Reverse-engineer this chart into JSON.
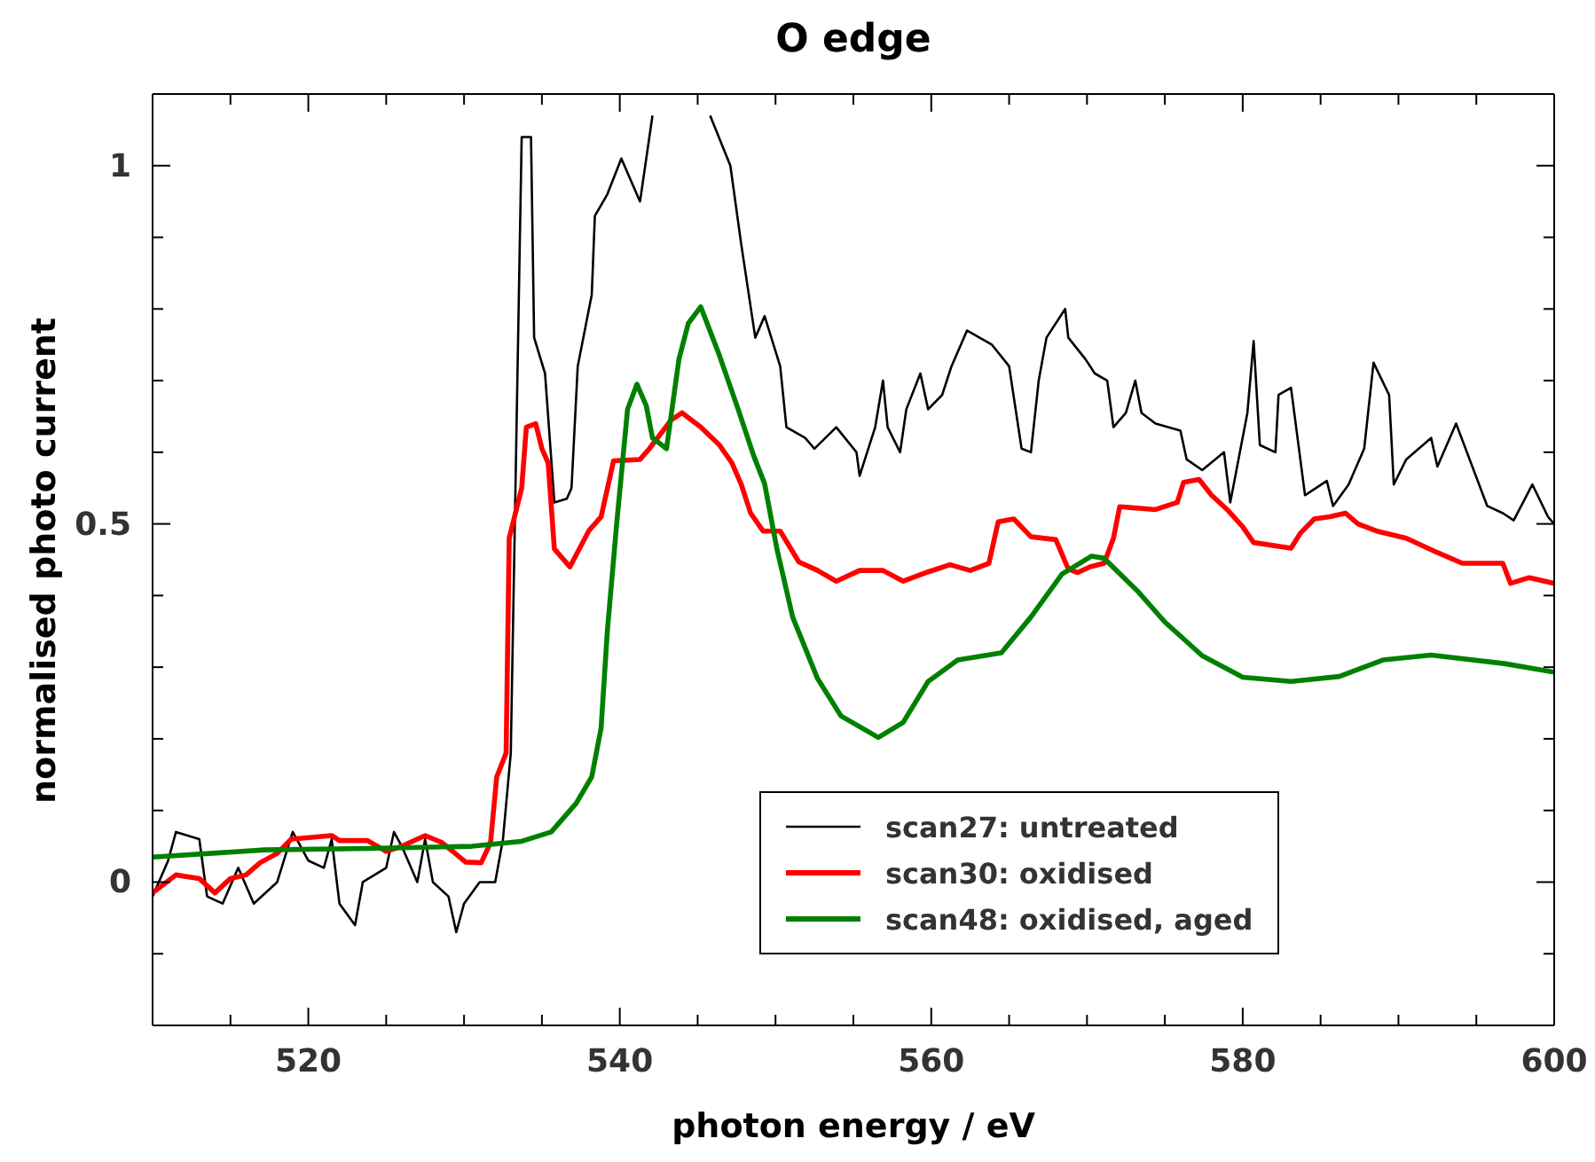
{
  "chart_data": {
    "type": "line",
    "title": "O edge",
    "xlabel": "photon energy / eV",
    "ylabel": "normalised photo current",
    "xlim": [
      510,
      600
    ],
    "ylim": [
      -0.2,
      1.1
    ],
    "xticks": [
      {
        "value": 510,
        "label": null
      },
      {
        "value": 515,
        "label": null
      },
      520,
      {
        "value": 525,
        "label": null
      },
      {
        "value": 530,
        "label": null
      },
      {
        "value": 535,
        "label": null
      },
      540,
      {
        "value": 545,
        "label": null
      },
      {
        "value": 550,
        "label": null
      },
      {
        "value": 555,
        "label": null
      },
      560,
      {
        "value": 565,
        "label": null
      },
      {
        "value": 570,
        "label": null
      },
      {
        "value": 575,
        "label": null
      },
      580,
      {
        "value": 585,
        "label": null
      },
      {
        "value": 590,
        "label": null
      },
      {
        "value": 595,
        "label": null
      },
      600
    ],
    "yticks": [
      {
        "value": -0.1,
        "label": null
      },
      0,
      {
        "value": 0.1,
        "label": null
      },
      {
        "value": 0.2,
        "label": null
      },
      {
        "value": 0.3,
        "label": null
      },
      {
        "value": 0.4,
        "label": null
      },
      0.5,
      {
        "value": 0.6,
        "label": null
      },
      {
        "value": 0.7,
        "label": null
      },
      {
        "value": 0.8,
        "label": null
      },
      {
        "value": 0.9,
        "label": null
      },
      1
    ],
    "legend": "bottom right",
    "marker": "none",
    "line_style": "solid",
    "series": [
      {
        "name": "scan27: untreated",
        "color": "#000000",
        "x": [
          510,
          511,
          511.5,
          513,
          513.5,
          514.5,
          515.5,
          516.5,
          518,
          519,
          520,
          521,
          521.5,
          522,
          523,
          523.5,
          525,
          525.5,
          526,
          527,
          527.5,
          528,
          529,
          529.5,
          530,
          531,
          532,
          532.5,
          533,
          533.7,
          534.3,
          534.5,
          535.2,
          535.8,
          536.6,
          536.9,
          537.3,
          538.2,
          538.4,
          539.2,
          540.1,
          541.3,
          542.1,
          543,
          544.8,
          545.8,
          547.1,
          547.8,
          548.7,
          549.3,
          550.3,
          550.7,
          551.9,
          552.5,
          553.9,
          555.2,
          555.4,
          556.4,
          556.9,
          557.2,
          558,
          558.4,
          559.3,
          559.8,
          560.7,
          561.3,
          562.3,
          563.9,
          565,
          565.8,
          566.4,
          566.9,
          567.4,
          568.6,
          568.8,
          569.9,
          570.5,
          571.3,
          571.7,
          572.5,
          573.1,
          573.5,
          574.4,
          576,
          576.4,
          577.4,
          578.8,
          579.2,
          580.3,
          580.7,
          581.1,
          582.1,
          582.3,
          583.1,
          584,
          585.4,
          585.8,
          586.8,
          587.8,
          588.4,
          589.4,
          589.7,
          590.5,
          592.1,
          592.5,
          593.7,
          595.7,
          596.7,
          597.4,
          598.6,
          599.6,
          600
        ],
        "values": [
          -0.02,
          0.03,
          0.07,
          0.06,
          -0.02,
          -0.03,
          0.02,
          -0.03,
          0,
          0.07,
          0.03,
          0.02,
          0.06,
          -0.03,
          -0.06,
          0,
          0.02,
          0.07,
          0.05,
          0,
          0.06,
          0,
          -0.02,
          -0.07,
          -0.03,
          0,
          0,
          0.06,
          0.18,
          1.04,
          1.04,
          0.76,
          0.71,
          0.53,
          0.535,
          0.55,
          0.72,
          0.82,
          0.93,
          0.96,
          1.01,
          0.95,
          1.07,
          null,
          null,
          1.07,
          1,
          0.89,
          0.76,
          0.79,
          0.72,
          0.635,
          0.62,
          0.605,
          0.635,
          0.6,
          0.567,
          0.635,
          0.7,
          0.635,
          0.6,
          0.66,
          0.71,
          0.66,
          0.68,
          0.72,
          0.77,
          0.75,
          0.72,
          0.605,
          0.6,
          0.7,
          0.76,
          0.8,
          0.76,
          0.73,
          0.71,
          0.7,
          0.635,
          0.655,
          0.7,
          0.655,
          0.64,
          0.63,
          0.59,
          0.575,
          0.6,
          0.53,
          0.655,
          0.755,
          0.61,
          0.6,
          0.68,
          0.69,
          0.54,
          0.56,
          0.525,
          0.555,
          0.605,
          0.725,
          0.68,
          0.555,
          0.59,
          0.62,
          0.58,
          0.64,
          0.525,
          0.515,
          0.505,
          0.555,
          0.51,
          0.5
        ]
      },
      {
        "name": "scan30: oxidised",
        "color": "#ff0000",
        "x": [
          510,
          511.5,
          513,
          514,
          515,
          516,
          516.9,
          518,
          518.9,
          521.5,
          522,
          523.8,
          525,
          526,
          527.5,
          528.6,
          530.1,
          531.1,
          531.7,
          532.1,
          532.7,
          532.9,
          533.7,
          534,
          534.6,
          535,
          535.4,
          535.8,
          536.8,
          538,
          538.8,
          539.6,
          541.3,
          541.9,
          543.3,
          544,
          545.2,
          546.4,
          547.2,
          547.8,
          548.4,
          549.2,
          550.3,
          551.5,
          552.7,
          553.9,
          555.4,
          556.9,
          558.2,
          559.8,
          561.2,
          562.5,
          563.7,
          564.3,
          565.3,
          566.4,
          568,
          568.8,
          569.4,
          570.2,
          571.1,
          571.7,
          572.1,
          574.4,
          575.8,
          576.2,
          577.2,
          578,
          579,
          580,
          580.7,
          583.1,
          583.7,
          584.6,
          585.6,
          586.6,
          587.4,
          588.6,
          590.5,
          592.5,
          594.1,
          596.7,
          597.2,
          598.4,
          600
        ],
        "values": [
          -0.015,
          0.01,
          0.005,
          -0.015,
          0.005,
          0.01,
          0.027,
          0.04,
          0.06,
          0.065,
          0.058,
          0.058,
          0.043,
          0.05,
          0.065,
          0.055,
          0.028,
          0.027,
          0.055,
          0.147,
          0.18,
          0.48,
          0.55,
          0.635,
          0.64,
          0.605,
          0.585,
          0.465,
          0.44,
          0.49,
          0.51,
          0.588,
          0.59,
          0.605,
          0.645,
          0.655,
          0.635,
          0.61,
          0.585,
          0.555,
          0.515,
          0.49,
          0.49,
          0.447,
          0.435,
          0.42,
          0.435,
          0.435,
          0.42,
          0.433,
          0.443,
          0.435,
          0.445,
          0.503,
          0.507,
          0.482,
          0.478,
          0.437,
          0.432,
          0.44,
          0.445,
          0.48,
          0.524,
          0.52,
          0.53,
          0.558,
          0.562,
          0.54,
          0.52,
          0.496,
          0.474,
          0.466,
          0.487,
          0.507,
          0.51,
          0.515,
          0.5,
          0.49,
          0.48,
          0.46,
          0.445,
          0.445,
          0.417,
          0.425,
          0.417
        ]
      },
      {
        "name": "scan48: oxidised, aged",
        "color": "#008000",
        "x": [
          510,
          517.2,
          524,
          530.5,
          533.7,
          535.6,
          537.2,
          538.2,
          538.8,
          539.2,
          539.8,
          540.5,
          541.1,
          541.7,
          542.1,
          543,
          543.8,
          544.4,
          545.2,
          546.4,
          547.6,
          548.6,
          549.3,
          550.1,
          551.1,
          552.7,
          554.2,
          556.6,
          558.2,
          559.8,
          561.7,
          564.5,
          566.4,
          568.4,
          570.3,
          571.1,
          573.3,
          575,
          577.4,
          580,
          583.1,
          586.2,
          589,
          592.1,
          596.8,
          600
        ],
        "values": [
          0.035,
          0.045,
          0.047,
          0.05,
          0.057,
          0.07,
          0.11,
          0.147,
          0.215,
          0.35,
          0.5,
          0.66,
          0.695,
          0.665,
          0.62,
          0.605,
          0.73,
          0.78,
          0.803,
          0.735,
          0.66,
          0.595,
          0.556,
          0.464,
          0.37,
          0.284,
          0.232,
          0.202,
          0.223,
          0.28,
          0.31,
          0.32,
          0.37,
          0.43,
          0.455,
          0.452,
          0.405,
          0.363,
          0.316,
          0.286,
          0.28,
          0.287,
          0.31,
          0.317,
          0.305,
          0.293
        ]
      }
    ]
  }
}
